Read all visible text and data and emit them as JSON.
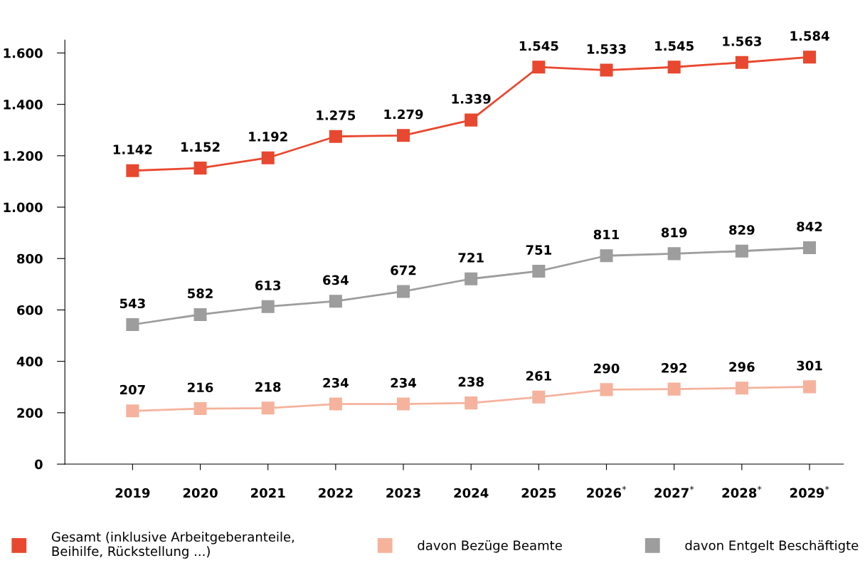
{
  "chart_data": {
    "type": "line",
    "categories": [
      "2019",
      "2020",
      "2021",
      "2022",
      "2023",
      "2024",
      "2025",
      "2026$^{*}$",
      "2027$^{*}$",
      "2028$^{*}$",
      "2029$^{*}$"
    ],
    "series": [
      {
        "name": "Gesamt (inklusive Arbeitgeberanteile,\nBeihilfe, Rückstellung ...)",
        "color": "#e8482f",
        "values": [
          1142,
          1152,
          1192,
          1275,
          1279,
          1339,
          1545,
          1533,
          1545,
          1563,
          1584
        ],
        "value_labels": [
          "1.142",
          "1.152",
          "1.192",
          "1.275",
          "1.279",
          "1.339",
          "1.545",
          "1.533",
          "1.545",
          "1.563",
          "1.584"
        ]
      },
      {
        "name": "davon Bezüge Beamte",
        "color": "#f5b39d",
        "values": [
          207,
          216,
          218,
          234,
          234,
          238,
          261,
          290,
          292,
          296,
          301
        ],
        "value_labels": [
          "207",
          "216",
          "218",
          "234",
          "234",
          "238",
          "261",
          "290",
          "292",
          "296",
          "301"
        ]
      },
      {
        "name": "davon Entgelt Beschäftigte",
        "color": "#9d9d9d",
        "values": [
          543,
          582,
          613,
          634,
          672,
          721,
          751,
          811,
          819,
          829,
          842
        ],
        "value_labels": [
          "543",
          "582",
          "613",
          "634",
          "672",
          "721",
          "751",
          "811",
          "819",
          "829",
          "842"
        ]
      }
    ],
    "ylim": [
      0,
      1650
    ],
    "yticks": [
      0,
      200,
      400,
      600,
      800,
      {
        "value": 1000,
        "label": "1.000"
      },
      {
        "value": 1200,
        "label": "1.200"
      },
      {
        "value": 1400,
        "label": "1.400"
      },
      {
        "value": 1600,
        "label": "1.600"
      }
    ],
    "grid": false,
    "legend": "bottom",
    "marker": "square",
    "line_style": "solid"
  }
}
